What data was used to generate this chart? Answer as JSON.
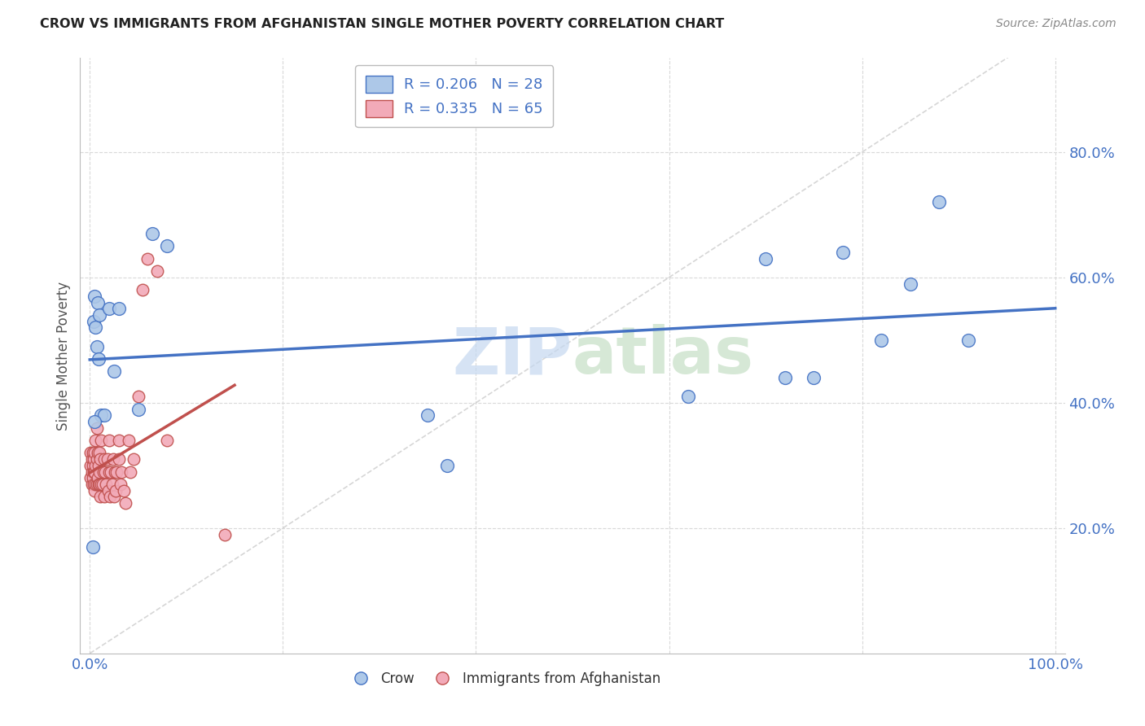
{
  "title": "CROW VS IMMIGRANTS FROM AFGHANISTAN SINGLE MOTHER POVERTY CORRELATION CHART",
  "source": "Source: ZipAtlas.com",
  "ylabel": "Single Mother Poverty",
  "crow_R": 0.206,
  "crow_N": 28,
  "afg_R": 0.335,
  "afg_N": 65,
  "crow_color": "#adc8e8",
  "afg_color": "#f2aab8",
  "crow_line_color": "#4472c4",
  "afg_line_color": "#c0504d",
  "diagonal_color": "#cccccc",
  "background_color": "#ffffff",
  "grid_color": "#d9d9d9",
  "crow_x": [
    0.003,
    0.004,
    0.005,
    0.006,
    0.007,
    0.008,
    0.009,
    0.01,
    0.012,
    0.015,
    0.02,
    0.025,
    0.03,
    0.05,
    0.065,
    0.08,
    0.35,
    0.37,
    0.62,
    0.7,
    0.72,
    0.75,
    0.78,
    0.82,
    0.85,
    0.88,
    0.91,
    0.005
  ],
  "crow_y": [
    0.17,
    0.53,
    0.57,
    0.52,
    0.49,
    0.56,
    0.47,
    0.54,
    0.38,
    0.38,
    0.55,
    0.45,
    0.55,
    0.39,
    0.67,
    0.65,
    0.38,
    0.3,
    0.41,
    0.63,
    0.44,
    0.44,
    0.64,
    0.5,
    0.59,
    0.72,
    0.5,
    0.37
  ],
  "afg_x": [
    0.001,
    0.001,
    0.001,
    0.002,
    0.002,
    0.002,
    0.003,
    0.003,
    0.003,
    0.004,
    0.004,
    0.004,
    0.005,
    0.005,
    0.005,
    0.006,
    0.006,
    0.006,
    0.007,
    0.007,
    0.007,
    0.008,
    0.008,
    0.009,
    0.009,
    0.01,
    0.01,
    0.01,
    0.011,
    0.011,
    0.012,
    0.012,
    0.013,
    0.014,
    0.015,
    0.015,
    0.016,
    0.017,
    0.018,
    0.019,
    0.02,
    0.02,
    0.021,
    0.022,
    0.023,
    0.024,
    0.025,
    0.026,
    0.027,
    0.028,
    0.03,
    0.03,
    0.032,
    0.033,
    0.035,
    0.037,
    0.04,
    0.042,
    0.045,
    0.05,
    0.055,
    0.06,
    0.07,
    0.08,
    0.14
  ],
  "afg_y": [
    0.28,
    0.3,
    0.32,
    0.27,
    0.29,
    0.31,
    0.28,
    0.3,
    0.32,
    0.27,
    0.29,
    0.31,
    0.26,
    0.29,
    0.32,
    0.27,
    0.3,
    0.34,
    0.27,
    0.31,
    0.36,
    0.28,
    0.32,
    0.27,
    0.3,
    0.27,
    0.29,
    0.32,
    0.25,
    0.31,
    0.27,
    0.34,
    0.27,
    0.29,
    0.25,
    0.31,
    0.29,
    0.27,
    0.31,
    0.26,
    0.29,
    0.34,
    0.25,
    0.29,
    0.27,
    0.31,
    0.25,
    0.29,
    0.26,
    0.29,
    0.31,
    0.34,
    0.27,
    0.29,
    0.26,
    0.24,
    0.34,
    0.29,
    0.31,
    0.41,
    0.58,
    0.63,
    0.61,
    0.34,
    0.19
  ],
  "xlim": [
    0.0,
    1.0
  ],
  "ylim": [
    0.05,
    0.9
  ],
  "yticks": [
    0.2,
    0.4,
    0.6,
    0.8
  ],
  "ytick_labels": [
    "20.0%",
    "40.0%",
    "60.0%",
    "80.0%"
  ],
  "xticks": [
    0.0,
    0.2,
    0.4,
    0.6,
    0.8,
    1.0
  ],
  "xtick_labels_show": [
    "0.0%",
    "",
    "",
    "",
    "",
    "100.0%"
  ]
}
